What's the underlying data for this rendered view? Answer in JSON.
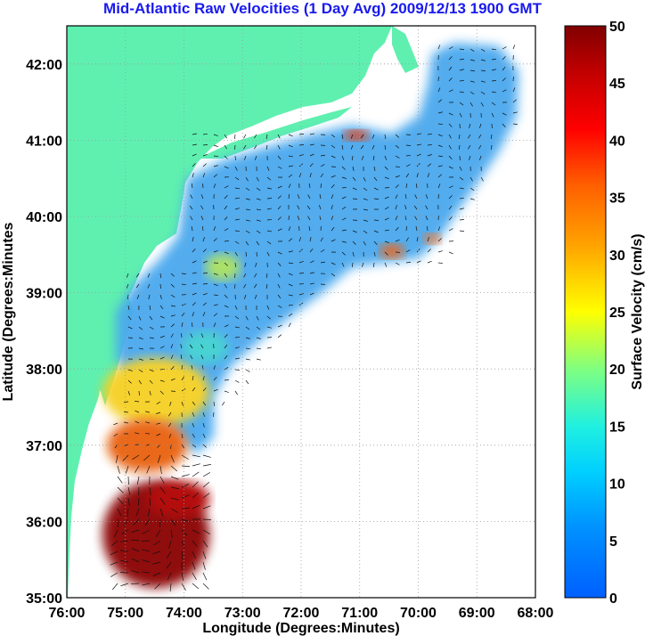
{
  "title": "Mid-Atlantic Raw Velocities (1 Day Avg) 2009/12/13 1900 GMT",
  "colors": {
    "land": "#5ff0b0",
    "title": "#1a1aee",
    "grid": "#9a9a9a"
  },
  "chart_data": {
    "type": "map",
    "xlabel": "Longitude (Degrees:Minutes)",
    "ylabel": "Latitude (Degrees:Minutes",
    "xlim": [
      -76,
      -68
    ],
    "ylim": [
      35,
      42.5
    ],
    "x_ticks": [
      "76:00",
      "75:00",
      "74:00",
      "73:00",
      "72:00",
      "71:00",
      "70:00",
      "69:00",
      "68:00"
    ],
    "y_ticks": [
      "35:00",
      "36:00",
      "37:00",
      "38:00",
      "39:00",
      "40:00",
      "41:00",
      "42:00"
    ],
    "colorbar": {
      "label": "Surface Velocity (cm/s)",
      "range": [
        0,
        50
      ],
      "ticks": [
        "0",
        "5",
        "10",
        "15",
        "20",
        "25",
        "30",
        "35",
        "40",
        "45",
        "50"
      ]
    }
  }
}
